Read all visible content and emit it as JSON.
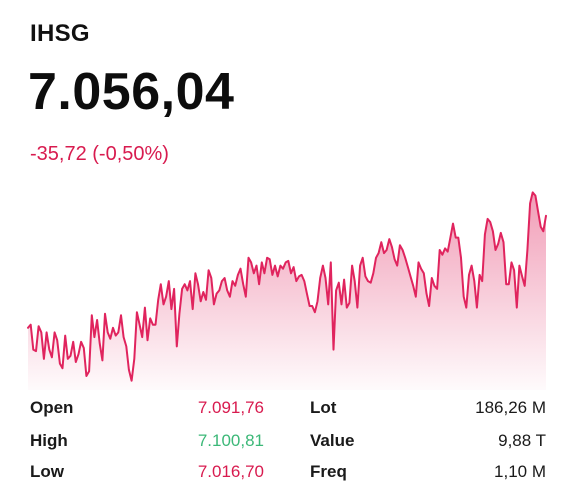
{
  "header": {
    "ticker": "IHSG",
    "price": "7.056,04",
    "change": "-35,72 (-0,50%)"
  },
  "colors": {
    "negative": "#d81b4f",
    "positive": "#3cb878",
    "line": "#e0245e"
  },
  "chart_data": {
    "type": "area",
    "values": [
      7030,
      7032,
      7016,
      7015,
      7031,
      7027,
      7010,
      7027,
      7016,
      7011,
      7027,
      7022,
      7007,
      7004,
      7025,
      7010,
      7012,
      7021,
      7008,
      7013,
      7021,
      7017,
      6999,
      7002,
      7038,
      7024,
      7035,
      7020,
      7009,
      7039,
      7027,
      7023,
      7030,
      7025,
      7027,
      7038,
      7024,
      7018,
      7003,
      6996,
      7010,
      7040,
      7032,
      7024,
      7043,
      7022,
      7036,
      7032,
      7032,
      7048,
      7058,
      7045,
      7050,
      7060,
      7042,
      7055,
      7018,
      7039,
      7055,
      7058,
      7054,
      7060,
      7042,
      7065,
      7058,
      7047,
      7053,
      7048,
      7067,
      7062,
      7045,
      7052,
      7054,
      7060,
      7062,
      7054,
      7050,
      7060,
      7057,
      7064,
      7068,
      7058,
      7050,
      7075,
      7072,
      7065,
      7070,
      7058,
      7072,
      7065,
      7075,
      7074,
      7064,
      7070,
      7063,
      7070,
      7068,
      7072,
      7073,
      7065,
      7069,
      7060,
      7063,
      7064,
      7060,
      7052,
      7044,
      7044,
      7040,
      7047,
      7062,
      7070,
      7062,
      7045,
      7072,
      7016,
      7054,
      7059,
      7045,
      7061,
      7043,
      7046,
      7070,
      7060,
      7043,
      7070,
      7075,
      7063,
      7060,
      7059,
      7065,
      7075,
      7078,
      7085,
      7078,
      7080,
      7087,
      7082,
      7074,
      7070,
      7083,
      7080,
      7075,
      7069,
      7063,
      7057,
      7050,
      7072,
      7068,
      7065,
      7052,
      7044,
      7062,
      7057,
      7055,
      7080,
      7077,
      7081,
      7079,
      7088,
      7097,
      7088,
      7088,
      7075,
      7050,
      7043,
      7064,
      7070,
      7060,
      7043,
      7064,
      7060,
      7090,
      7100,
      7098,
      7092,
      7080,
      7084,
      7091,
      7085,
      7058,
      7058,
      7072,
      7067,
      7043,
      7070,
      7063,
      7057,
      7080,
      7110,
      7117,
      7115,
      7105,
      7095,
      7092,
      7102
    ],
    "ylim": [
      6990,
      7125
    ]
  },
  "stats": {
    "open_label": "Open",
    "open_value": "7.091,76",
    "high_label": "High",
    "high_value": "7.100,81",
    "low_label": "Low",
    "low_value": "7.016,70",
    "lot_label": "Lot",
    "lot_value": "186,26 M",
    "value_label": "Value",
    "value_value": "9,88 T",
    "freq_label": "Freq",
    "freq_value": "1,10 M"
  }
}
